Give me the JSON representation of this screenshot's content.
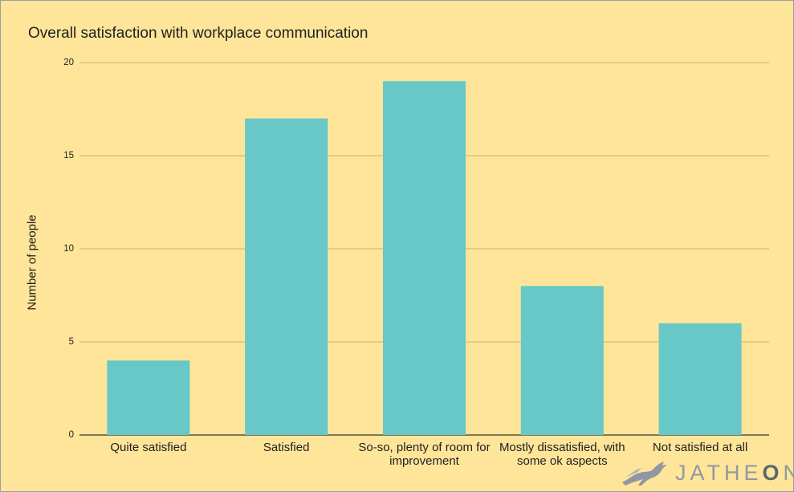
{
  "chart_data": {
    "type": "bar",
    "title": "Overall satisfaction with workplace communication",
    "xlabel": "",
    "ylabel": "Number of people",
    "categories": [
      "Quite satisfied",
      "Satisfied",
      "So-so, plenty of room for improvement",
      "Mostly dissatisfied, with some ok aspects",
      "Not satisfied at all"
    ],
    "values": [
      4,
      17,
      19,
      8,
      6
    ],
    "ylim": [
      0,
      20
    ],
    "yticks": [
      "0",
      "5",
      "10",
      "15",
      "20"
    ],
    "grid": true,
    "bar_color": "#67c8c7",
    "background_color": "#ffe599"
  },
  "watermark": {
    "text_light": "JATHE",
    "text_bold": "O",
    "text_tail": "N",
    "icon": "fox-logo-icon"
  }
}
